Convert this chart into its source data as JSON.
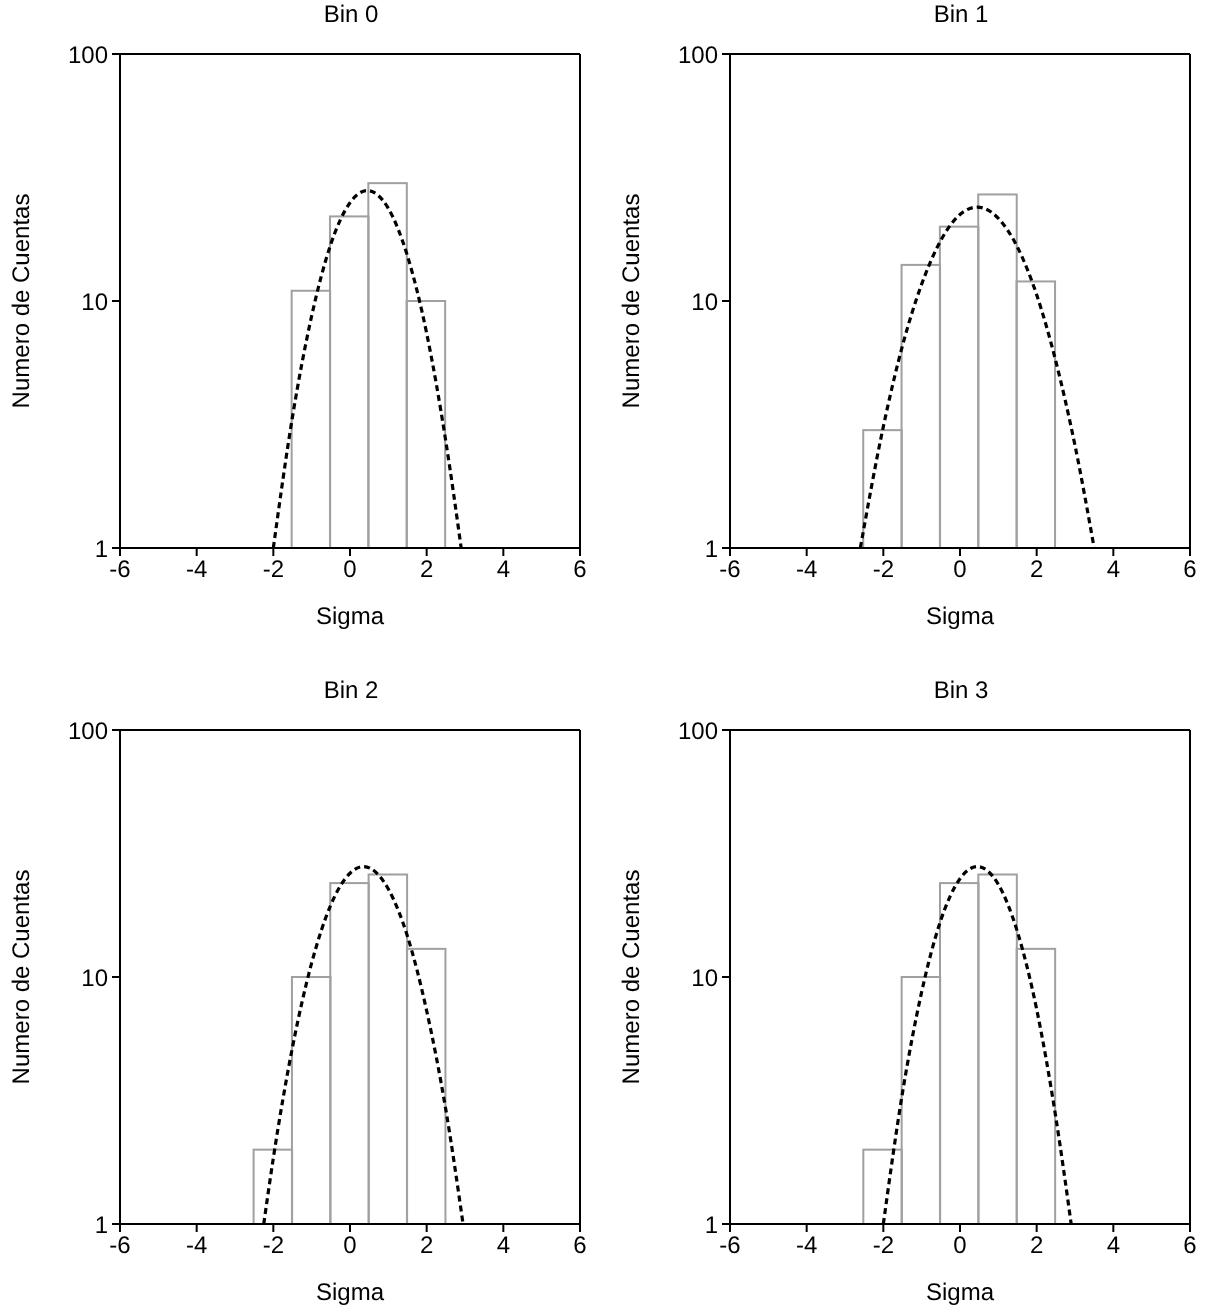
{
  "chart_data": [
    {
      "type": "histogram",
      "title": "Bin 0",
      "xlabel": "Sigma",
      "ylabel": "Numero de Cuentas",
      "bins": [
        -1.5,
        -0.5,
        0.5,
        1.5,
        2.5
      ],
      "values": [
        11,
        22,
        30,
        10
      ],
      "color": "#a0a0a0",
      "xlim": [
        -6,
        6
      ],
      "xticks": [
        -6,
        -4,
        -2,
        0,
        2,
        4,
        6
      ],
      "ylim": [
        1,
        100
      ],
      "yticks": [
        1,
        10,
        100
      ],
      "log": "y",
      "grid": false,
      "legend": false,
      "series": [
        {
          "type": "line",
          "color": "#000000",
          "line_style": "dashed",
          "x": [
            -2,
            -1.5,
            -1,
            -0.5,
            0,
            0.45,
            1,
            1.5,
            2,
            2.5,
            2.9
          ],
          "values": [
            1,
            3.4,
            8.7,
            17,
            25,
            28,
            23.7,
            15.2,
            7.4,
            2.7,
            1
          ]
        }
      ]
    },
    {
      "type": "histogram",
      "title": "Bin 1",
      "xlabel": "Sigma",
      "ylabel": "Numero de Cuentas",
      "bins": [
        -2.5,
        -1.5,
        -0.5,
        0.5,
        1.5,
        2.5
      ],
      "values": [
        3,
        14,
        20,
        27,
        12
      ],
      "color": "#a0a0a0",
      "xlim": [
        -6,
        6
      ],
      "xticks": [
        -6,
        -4,
        -2,
        0,
        2,
        4,
        6
      ],
      "ylim": [
        1,
        100
      ],
      "yticks": [
        1,
        10,
        100
      ],
      "log": "y",
      "grid": false,
      "legend": false,
      "series": [
        {
          "type": "line",
          "color": "#000000",
          "line_style": "dashed",
          "x": [
            -2.6,
            -2,
            -1.5,
            -1,
            -0.5,
            0,
            0.45,
            1,
            1.5,
            2,
            2.5,
            3,
            3.5
          ],
          "values": [
            1,
            3.1,
            6.6,
            11.7,
            17.6,
            22.4,
            24,
            21.6,
            16.5,
            10.6,
            5.7,
            2.6,
            1
          ]
        }
      ]
    },
    {
      "type": "histogram",
      "title": "Bin 2",
      "xlabel": "Sigma",
      "ylabel": "Numero de Cuentas",
      "bins": [
        -2.5,
        -1.5,
        -0.5,
        0.5,
        1.5,
        2.5
      ],
      "values": [
        2,
        10,
        24,
        26,
        13
      ],
      "color": "#a0a0a0",
      "xlim": [
        -6,
        6
      ],
      "xticks": [
        -6,
        -4,
        -2,
        0,
        2,
        4,
        6
      ],
      "ylim": [
        1,
        100
      ],
      "yticks": [
        1,
        10,
        100
      ],
      "log": "y",
      "grid": false,
      "legend": false,
      "series": [
        {
          "type": "line",
          "color": "#000000",
          "line_style": "dashed",
          "x": [
            -2.25,
            -2,
            -1.5,
            -1,
            -0.5,
            0,
            0.35,
            1,
            1.5,
            2,
            2.5,
            2.95
          ],
          "values": [
            1,
            1.85,
            5.2,
            11.4,
            19.6,
            26.3,
            28,
            22.7,
            14.6,
            7.3,
            2.9,
            1
          ]
        }
      ]
    },
    {
      "type": "histogram",
      "title": "Bin 3",
      "xlabel": "Sigma",
      "ylabel": "Numero de Cuentas",
      "bins": [
        -2.5,
        -1.5,
        -0.5,
        0.5,
        1.5,
        2.5
      ],
      "values": [
        2,
        10,
        24,
        26,
        13
      ],
      "color": "#a0a0a0",
      "xlim": [
        -6,
        6
      ],
      "xticks": [
        -6,
        -4,
        -2,
        0,
        2,
        4,
        6
      ],
      "ylim": [
        1,
        100
      ],
      "yticks": [
        1,
        10,
        100
      ],
      "log": "y",
      "grid": false,
      "legend": false,
      "series": [
        {
          "type": "line",
          "color": "#000000",
          "line_style": "dashed",
          "x": [
            -2,
            -1.5,
            -1,
            -0.5,
            0,
            0.45,
            1,
            1.5,
            2,
            2.5,
            2.9
          ],
          "values": [
            1,
            3.4,
            8.7,
            17,
            25,
            28,
            23.7,
            15.2,
            7.4,
            2.7,
            1
          ]
        }
      ]
    }
  ]
}
